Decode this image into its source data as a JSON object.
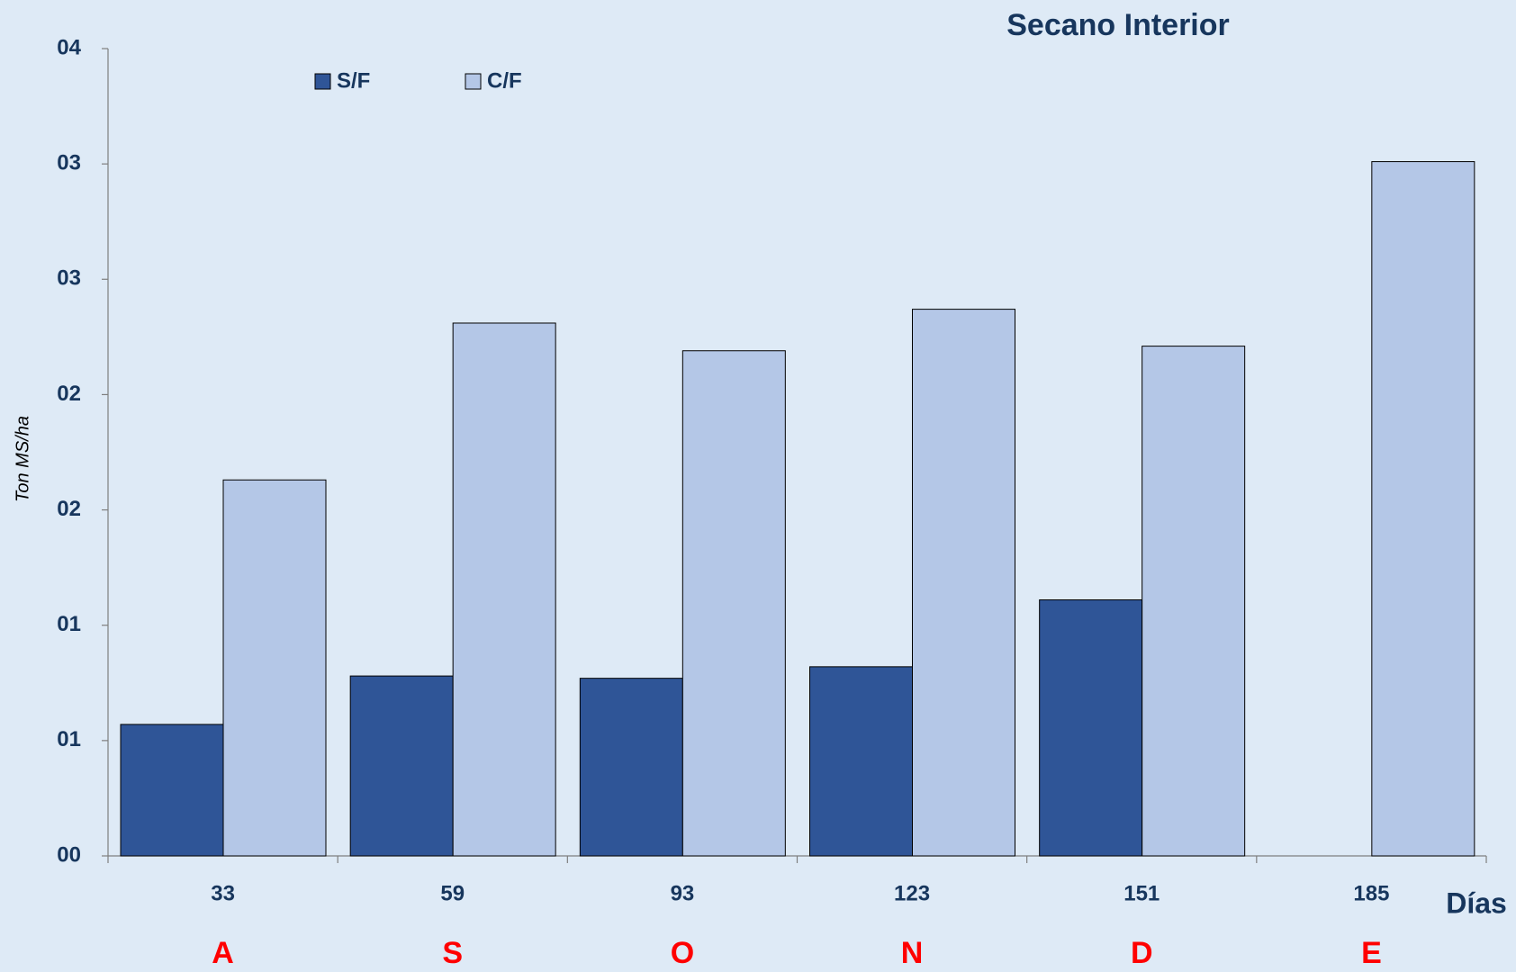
{
  "chart_data": {
    "type": "bar",
    "title": "Secano Interior",
    "y_label": "Ton MS/ha",
    "x_label": "Días",
    "categories": [
      "33",
      "59",
      "93",
      "123",
      "151",
      "185"
    ],
    "month_labels": [
      "A",
      "S",
      "O",
      "N",
      "D",
      "E"
    ],
    "series": [
      {
        "name": "S/F",
        "color": "#2f5597",
        "values": [
          0.57,
          0.78,
          0.77,
          0.82,
          1.11,
          null
        ]
      },
      {
        "name": "C/F",
        "color": "#b4c7e7",
        "values": [
          1.63,
          2.31,
          2.19,
          2.37,
          2.21,
          3.01
        ]
      }
    ],
    "ylim": [
      0,
      3.5
    ],
    "yticks": [
      {
        "value": 0,
        "label": "00"
      },
      {
        "value": 0.5,
        "label": "01"
      },
      {
        "value": 1,
        "label": "01"
      },
      {
        "value": 1.5,
        "label": "02"
      },
      {
        "value": 2,
        "label": "02"
      },
      {
        "value": 2.5,
        "label": "03"
      },
      {
        "value": 3,
        "label": "03"
      },
      {
        "value": 3.5,
        "label": "04"
      }
    ],
    "grid": false,
    "legend": "top-left"
  }
}
